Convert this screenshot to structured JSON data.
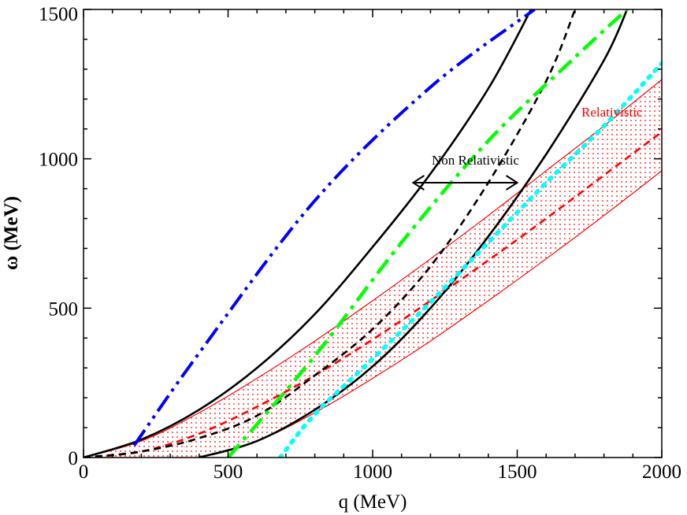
{
  "chart_data": {
    "type": "line",
    "title": "",
    "xlabel": "q (MeV)",
    "ylabel": "ω (MeV)",
    "xlim": [
      0,
      2000
    ],
    "ylim": [
      0,
      1500
    ],
    "x_ticks": [
      "0",
      "500",
      "1000",
      "1500",
      "2000"
    ],
    "y_ticks": [
      "0",
      "500",
      "1000",
      "1500"
    ],
    "x_tick_values": [
      0,
      500,
      1000,
      1500,
      2000
    ],
    "y_tick_values": [
      0,
      500,
      1000,
      1500
    ],
    "band": {
      "name": "Relativistic",
      "color": "#ff0000",
      "upper": {
        "x": [
          0,
          200,
          400,
          600,
          800,
          1000,
          1200,
          1400,
          1600,
          1800,
          2000
        ],
        "y": [
          0,
          55,
          150,
          265,
          390,
          525,
          665,
          810,
          960,
          1110,
          1265
        ]
      },
      "lower": {
        "x": [
          400,
          600,
          800,
          1000,
          1200,
          1400,
          1600,
          1800,
          2000
        ],
        "y": [
          0,
          55,
          150,
          265,
          390,
          525,
          665,
          810,
          960
        ]
      }
    },
    "series": [
      {
        "name": "band-upper",
        "color": "#ff0000",
        "style": "thin",
        "x": [
          0,
          200,
          400,
          600,
          800,
          1000,
          1200,
          1400,
          1600,
          1800,
          2000
        ],
        "y": [
          0,
          55,
          150,
          265,
          390,
          525,
          665,
          810,
          960,
          1110,
          1265
        ]
      },
      {
        "name": "band-lower",
        "color": "#ff0000",
        "style": "thin",
        "x": [
          400,
          600,
          800,
          1000,
          1200,
          1400,
          1600,
          1800,
          2000
        ],
        "y": [
          0,
          55,
          150,
          265,
          390,
          525,
          665,
          810,
          960
        ]
      },
      {
        "name": "band-central-dashed",
        "color": "#ff0000",
        "style": "dashed",
        "x": [
          0,
          200,
          400,
          600,
          800,
          1000,
          1200,
          1400,
          1600,
          1800,
          2000
        ],
        "y": [
          0,
          20,
          80,
          170,
          275,
          395,
          525,
          660,
          800,
          945,
          1090
        ]
      },
      {
        "name": "non-relativistic-upper",
        "color": "#000000",
        "style": "solid",
        "x": [
          0,
          200,
          400,
          600,
          800,
          1000,
          1200,
          1400,
          1548
        ],
        "y": [
          0,
          60,
          160,
          300,
          480,
          705,
          950,
          1235,
          1500
        ]
      },
      {
        "name": "non-relativistic-lower",
        "color": "#000000",
        "style": "solid",
        "x": [
          400,
          600,
          800,
          1000,
          1200,
          1400,
          1600,
          1800,
          1880
        ],
        "y": [
          0,
          55,
          160,
          305,
          500,
          740,
          1015,
          1330,
          1500
        ]
      },
      {
        "name": "non-relativistic-central-dashed",
        "color": "#000000",
        "style": "dashed",
        "x": [
          0,
          200,
          400,
          600,
          800,
          1000,
          1200,
          1400,
          1600,
          1700
        ],
        "y": [
          0,
          20,
          65,
          140,
          275,
          430,
          640,
          920,
          1260,
          1500
        ]
      },
      {
        "name": "blue-dash-dot-dot",
        "color": "#0000ff",
        "style": "dashdotdot",
        "x": [
          175,
          400,
          800,
          1200,
          1560
        ],
        "y": [
          40,
          350,
          860,
          1240,
          1500
        ]
      },
      {
        "name": "green-dash-dot",
        "color": "#00ff00",
        "style": "dashdot",
        "x": [
          500,
          800,
          1100,
          1400,
          1700,
          1880
        ],
        "y": [
          0,
          340,
          720,
          1060,
          1340,
          1500
        ]
      },
      {
        "name": "cyan-dotted",
        "color": "#00ffff",
        "style": "dotted",
        "x": [
          680,
          800,
          1000,
          1200,
          1400,
          1600,
          1800,
          2000
        ],
        "y": [
          0,
          145,
          330,
          520,
          720,
          920,
          1110,
          1320
        ]
      }
    ],
    "annotations": [
      {
        "text": "Non Relativistic",
        "color": "#000000"
      },
      {
        "text": "Relativistic",
        "color": "#ff0000"
      }
    ],
    "arrow": {
      "x_from": 1140,
      "x_to": 1500,
      "y": 920
    }
  }
}
